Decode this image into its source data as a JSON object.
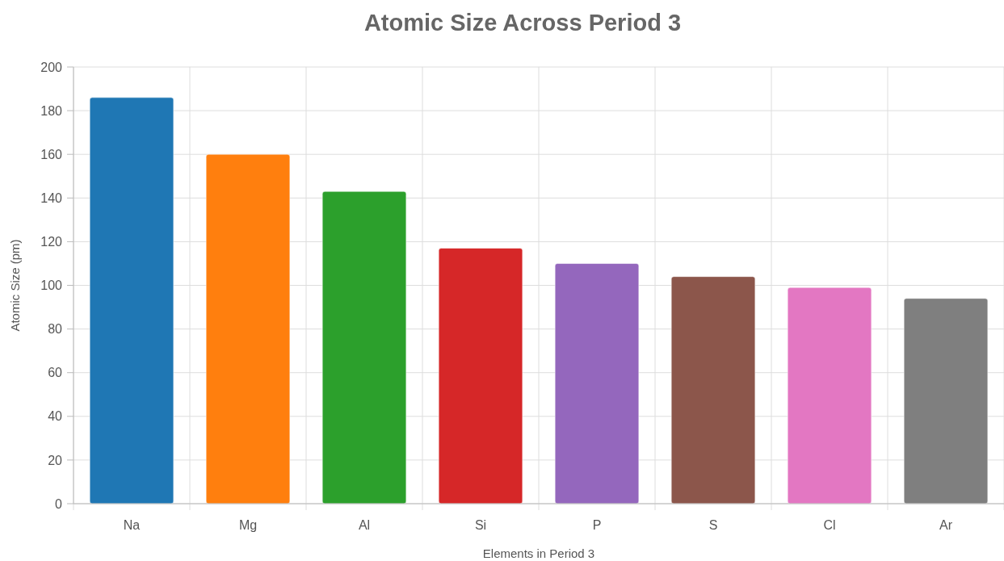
{
  "chart_data": {
    "type": "bar",
    "title": "Atomic Size Across Period 3",
    "xlabel": "Elements in Period 3",
    "ylabel": "Atomic Size (pm)",
    "categories": [
      "Na",
      "Mg",
      "Al",
      "Si",
      "P",
      "S",
      "Cl",
      "Ar"
    ],
    "values": [
      186,
      160,
      143,
      117,
      110,
      104,
      99,
      94
    ],
    "colors": [
      "#1f77b4",
      "#ff7f0e",
      "#2ca02c",
      "#d62728",
      "#9467bd",
      "#8c564b",
      "#e377c2",
      "#7f7f7f"
    ],
    "ylim": [
      0,
      200
    ],
    "yticks": [
      0,
      20,
      40,
      60,
      80,
      100,
      120,
      140,
      160,
      180,
      200
    ],
    "grid": true
  }
}
